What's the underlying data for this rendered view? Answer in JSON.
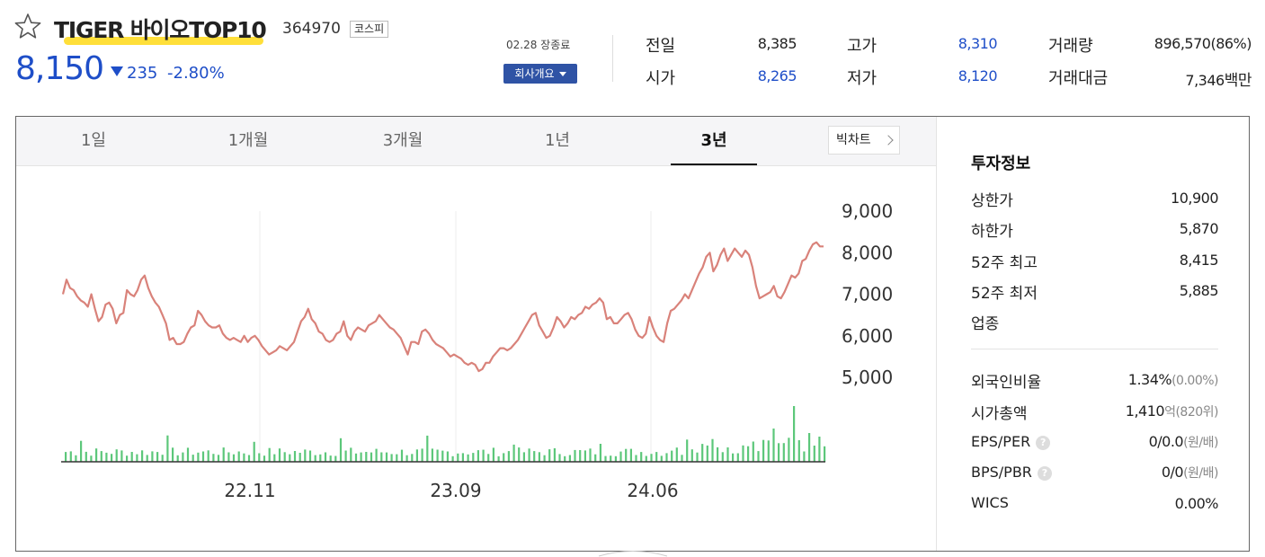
{
  "stock": {
    "name": "TIGER 바이오TOP10",
    "code": "364970",
    "market": "코스피",
    "price": "8,150",
    "change": "235",
    "change_pct": "-2.80%",
    "date_status": "02.28 장종료",
    "company_button": "회사개요"
  },
  "quote": {
    "prev_label": "전일",
    "prev": "8,385",
    "high_label": "고가",
    "high": "8,310",
    "volume_label": "거래량",
    "volume": "896,570(86%)",
    "open_label": "시가",
    "open": "8,265",
    "low_label": "저가",
    "low": "8,120",
    "amount_label": "거래대금",
    "amount": "7,346",
    "amount_unit": "백만"
  },
  "tabs": [
    "1일",
    "1개월",
    "3개월",
    "1년",
    "3년"
  ],
  "active_tab": "3년",
  "big_chart_button": "빅차트",
  "chart_data": {
    "type": "line",
    "title": "",
    "y_ticks": [
      "9,000",
      "8,000",
      "7,000",
      "6,000",
      "5,000"
    ],
    "x_ticks": [
      "22.11",
      "23.09",
      "24.06"
    ],
    "ylim": [
      5000,
      9000
    ],
    "price": [
      7000,
      7350,
      7150,
      7100,
      6950,
      6850,
      6800,
      6700,
      7000,
      6650,
      6350,
      6450,
      6750,
      6800,
      6650,
      6300,
      6500,
      6550,
      7100,
      7000,
      6950,
      7100,
      7350,
      7450,
      7150,
      6950,
      6800,
      6700,
      6500,
      6300,
      5900,
      5950,
      5800,
      5800,
      5850,
      6050,
      6200,
      6250,
      6600,
      6500,
      6350,
      6250,
      6200,
      6200,
      6250,
      6050,
      5950,
      5900,
      5950,
      5900,
      5850,
      6000,
      5850,
      5950,
      6000,
      5900,
      5750,
      5650,
      5550,
      5600,
      5650,
      5750,
      5700,
      5650,
      5750,
      5850,
      6100,
      6350,
      6450,
      6650,
      6400,
      6300,
      6100,
      6050,
      5900,
      5850,
      5900,
      6050,
      6100,
      6350,
      6000,
      5900,
      6100,
      6200,
      6150,
      6100,
      6250,
      6300,
      6350,
      6500,
      6400,
      6300,
      6200,
      6150,
      6050,
      5950,
      5750,
      5550,
      5850,
      5850,
      5800,
      6100,
      6150,
      6050,
      5900,
      5800,
      5750,
      5700,
      5600,
      5500,
      5550,
      5500,
      5450,
      5350,
      5300,
      5350,
      5300,
      5150,
      5200,
      5350,
      5350,
      5500,
      5600,
      5700,
      5700,
      5650,
      5700,
      5800,
      5900,
      6050,
      6200,
      6350,
      6500,
      6550,
      6250,
      6100,
      5950,
      6000,
      6200,
      6450,
      6350,
      6200,
      6300,
      6450,
      6400,
      6500,
      6550,
      6700,
      6650,
      6750,
      6800,
      6900,
      6800,
      6400,
      6450,
      6300,
      6300,
      6400,
      6500,
      6550,
      6400,
      6150,
      6000,
      5950,
      6050,
      6450,
      6200,
      6000,
      5900,
      5850,
      6300,
      6600,
      6650,
      6750,
      6850,
      7000,
      6900,
      7100,
      7300,
      7500,
      7650,
      7900,
      8000,
      7550,
      7700,
      7950,
      8100,
      7800,
      7950,
      8100,
      8000,
      7900,
      8050,
      7950,
      7650,
      7200,
      6900,
      6950,
      7000,
      7050,
      7200,
      6950,
      6900,
      7050,
      7250,
      7450,
      7400,
      7500,
      7800,
      7850,
      8050,
      8200,
      8250,
      8150,
      8150
    ]
  },
  "invest": {
    "title": "투자정보",
    "rows": [
      {
        "label": "상한가",
        "value": "10,900"
      },
      {
        "label": "하한가",
        "value": "5,870"
      },
      {
        "label": "52주 최고",
        "value": "8,415"
      },
      {
        "label": "52주 최저",
        "value": "5,885"
      },
      {
        "label": "업종",
        "value": ""
      }
    ],
    "rows2": [
      {
        "label": "외국인비율",
        "value": "1.34%",
        "sub": "(0.00%)"
      },
      {
        "label": "시가총액",
        "value": "1,410",
        "sub": "억(820위)"
      },
      {
        "label": "EPS/PER",
        "value": "0/0.0",
        "sub": "(원/배)"
      },
      {
        "label": "BPS/PBR",
        "value": "0/0",
        "sub": "(원/배)"
      },
      {
        "label": "WICS",
        "value": "0.00%",
        "sub": ""
      }
    ],
    "help_glyph": "?"
  }
}
